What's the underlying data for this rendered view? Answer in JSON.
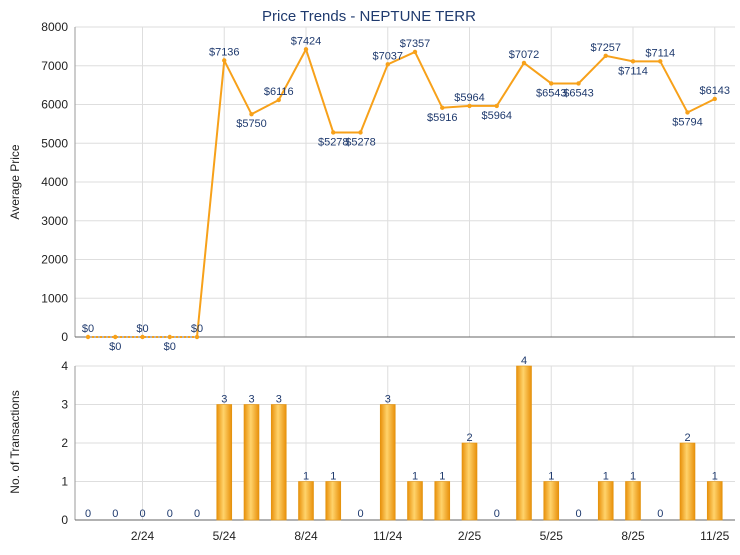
{
  "chart_data": [
    {
      "type": "line",
      "title": "Price Trends - NEPTUNE TERR",
      "ylabel": "Average Price",
      "ylim": [
        0,
        8000
      ],
      "yticks": [
        0,
        1000,
        2000,
        3000,
        4000,
        5000,
        6000,
        7000,
        8000
      ],
      "grid": true,
      "x_tick_labels": [
        "2/24",
        "5/24",
        "8/24",
        "11/24",
        "2/25",
        "5/25",
        "8/25",
        "11/25"
      ],
      "line_color": "#f7a11a",
      "series": [
        {
          "values": [
            0,
            0,
            0,
            0,
            0,
            7136,
            5750,
            6116,
            7424,
            5278,
            5278,
            7037,
            7357,
            5916,
            5964,
            5964,
            7072,
            6543,
            6543,
            7257,
            7114,
            7114,
            5794,
            6143
          ],
          "labels": [
            "$0",
            "$0",
            "$0",
            "$0",
            "$0",
            "$7136",
            "$5750",
            "$6116",
            "$7424",
            "$5278",
            "$5278",
            "$7037",
            "$7357",
            "$5916",
            "$5964",
            "$5964",
            "$7072",
            "$6543",
            "$6543",
            "$7257",
            "$7114",
            "$7114",
            "$5794",
            "$6143"
          ]
        }
      ]
    },
    {
      "type": "bar",
      "ylabel": "No. of Transactions",
      "ylim": [
        0,
        4
      ],
      "yticks": [
        0,
        1,
        2,
        3,
        4
      ],
      "grid": true,
      "x_tick_labels": [
        "2/24",
        "5/24",
        "8/24",
        "11/24",
        "2/25",
        "5/25",
        "8/25",
        "11/25"
      ],
      "bar_color": "#f5a623",
      "series": [
        {
          "values": [
            0,
            0,
            0,
            0,
            0,
            3,
            3,
            3,
            1,
            1,
            0,
            3,
            1,
            1,
            2,
            0,
            4,
            1,
            0,
            1,
            1,
            0,
            2,
            1
          ]
        }
      ]
    }
  ]
}
